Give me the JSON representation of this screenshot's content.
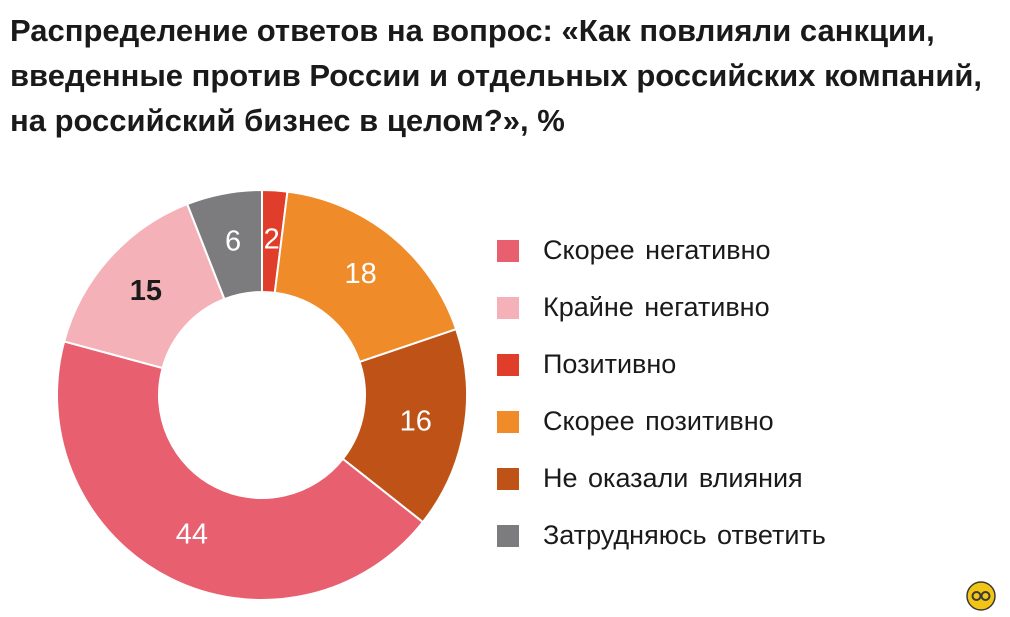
{
  "chart_data": {
    "type": "pie",
    "title": "Распределение ответов на вопрос: «Как повлияли санкции, введенные против России и отдельных российских компаний, на российский бизнес в целом?», %",
    "legend_position": "right",
    "slices": [
      {
        "name": "Позитивно",
        "value": 2,
        "color": "#e03d2a",
        "label_color": "#ffffff",
        "label_bold": false
      },
      {
        "name": "Скорее  позитивно",
        "value": 18,
        "color": "#f08b2a",
        "label_color": "#ffffff",
        "label_bold": false
      },
      {
        "name": "Не  оказали  влияния",
        "value": 16,
        "color": "#bf5317",
        "label_color": "#ffffff",
        "label_bold": false
      },
      {
        "name": "Скорее негативно",
        "value": 44,
        "color": "#e8606f",
        "label_color": "#ffffff",
        "label_bold": false
      },
      {
        "name": "Крайне негативно",
        "value": 15,
        "color": "#f4b2b8",
        "label_color": "#1a1a1a",
        "label_bold": true
      },
      {
        "name": "Затрудняюсь ответить",
        "value": 6,
        "color": "#7c7c7f",
        "label_color": "#ffffff",
        "label_bold": false
      }
    ],
    "legend_order": [
      "Скорее негативно",
      "Крайне негативно",
      "Позитивно",
      "Скорее  позитивно",
      "Не  оказали  влияния",
      "Затрудняюсь ответить"
    ]
  },
  "logo": {
    "icon": "circle-logo-icon",
    "color": "#f2c515"
  }
}
